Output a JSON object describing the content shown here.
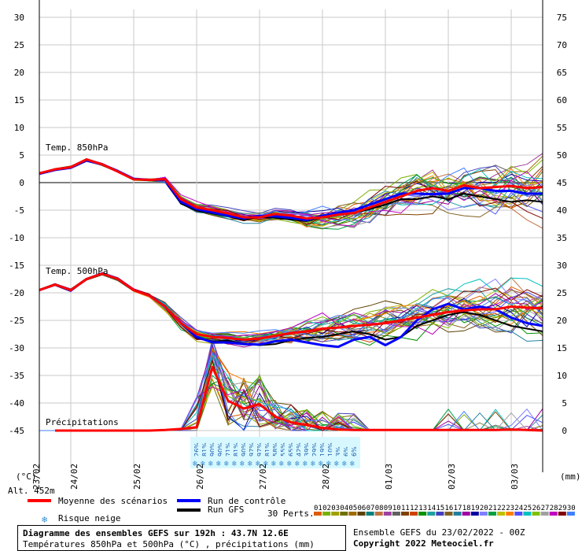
{
  "chart_data": {
    "type": "line",
    "title": "Diagramme des ensembles GEFS sur 192h : 43.7N 12.6E",
    "subtitle": "Températures 850hPa et 500hPa (°C) , précipitations (mm)",
    "left_axis": {
      "label": "(°C)",
      "min": -45,
      "max": 30,
      "ticks": [
        30,
        25,
        20,
        15,
        10,
        5,
        0,
        -5,
        -10,
        -15,
        -20,
        -25,
        -30,
        -35,
        -40,
        -45
      ]
    },
    "right_axis": {
      "label": "(mm)",
      "min": 0,
      "max": 75,
      "ticks": [
        75,
        70,
        65,
        60,
        55,
        50,
        45,
        40,
        35,
        30,
        25,
        20,
        15,
        10,
        5,
        0
      ]
    },
    "x_axis": {
      "start_hour": 0,
      "end_hour": 192,
      "date_ticks": [
        {
          "label": "24/02",
          "hour": 12
        },
        {
          "label": "25/02",
          "hour": 36
        },
        {
          "label": "26/02",
          "hour": 60
        },
        {
          "label": "27/02",
          "hour": 84
        },
        {
          "label": "28/02",
          "hour": 108
        },
        {
          "label": "01/03",
          "hour": 132
        },
        {
          "label": "02/03",
          "hour": 156
        },
        {
          "label": "03/03",
          "hour": 180
        }
      ],
      "first_label": "23/02"
    },
    "panel_labels": {
      "t850": "Temp. 850hPa",
      "t500": "Temp. 500hPa",
      "precip": "Précipitations"
    },
    "series_hours": [
      0,
      6,
      12,
      18,
      24,
      30,
      36,
      42,
      48,
      54,
      60,
      66,
      72,
      78,
      84,
      90,
      96,
      102,
      108,
      114,
      120,
      126,
      132,
      138,
      144,
      150,
      156,
      162,
      168,
      174,
      180,
      186,
      192
    ],
    "series": [
      {
        "name": "Moyenne des scénarios T850",
        "color": "#ff0000",
        "values": [
          1.7,
          2.4,
          2.8,
          4.2,
          3.3,
          2.0,
          0.6,
          0.5,
          0.6,
          -3.0,
          -4.5,
          -5.0,
          -5.6,
          -6.3,
          -6.3,
          -5.7,
          -6.0,
          -6.5,
          -6.3,
          -5.8,
          -5.5,
          -4.5,
          -3.5,
          -2.5,
          -1.5,
          -1.0,
          -1.5,
          -0.5,
          -1.0,
          -0.8,
          -0.6,
          -1.0,
          -0.8
        ]
      },
      {
        "name": "Run de contrôle T850",
        "color": "#0000ff",
        "values": [
          1.6,
          2.3,
          2.7,
          4.0,
          3.3,
          2.1,
          0.7,
          0.5,
          0.5,
          -3.5,
          -4.8,
          -5.4,
          -6.0,
          -6.5,
          -6.0,
          -6.1,
          -6.4,
          -6.8,
          -6.0,
          -5.5,
          -5.0,
          -4.0,
          -3.0,
          -2.0,
          -2.0,
          -2.1,
          -2.0,
          -1.0,
          -1.0,
          -1.5,
          -1.5,
          -2.0,
          -2.0
        ]
      },
      {
        "name": "Run GFS T850",
        "color": "#000000",
        "values": [
          1.6,
          2.3,
          2.8,
          4.1,
          3.2,
          2.0,
          0.6,
          0.4,
          0.4,
          -3.8,
          -5.1,
          -5.6,
          -6.1,
          -6.8,
          -6.2,
          -6.4,
          -6.7,
          -7.0,
          -6.2,
          -5.8,
          -5.5,
          -4.8,
          -4.0,
          -3.0,
          -3.0,
          -2.5,
          -3.0,
          -2.0,
          -2.5,
          -3.0,
          -3.5,
          -3.2,
          -3.5
        ]
      },
      {
        "name": "Moyenne des scénarios T500",
        "color": "#ff0000",
        "values": [
          -19.5,
          -18.5,
          -19.5,
          -17.5,
          -16.5,
          -17.5,
          -19.5,
          -20.5,
          -22.5,
          -25.5,
          -27.5,
          -28.0,
          -28.2,
          -28.5,
          -28.3,
          -27.8,
          -27.3,
          -27.0,
          -26.5,
          -26.3,
          -26.0,
          -25.8,
          -25.5,
          -25.0,
          -24.5,
          -24.0,
          -23.5,
          -23.2,
          -23.0,
          -23.0,
          -22.5,
          -22.7,
          -22.8
        ]
      },
      {
        "name": "Run de contrôle T500",
        "color": "#0000ff",
        "values": [
          -19.5,
          -18.5,
          -19.5,
          -17.5,
          -16.5,
          -17.5,
          -19.5,
          -20.5,
          -22.5,
          -25.5,
          -28.0,
          -29.0,
          -29.0,
          -29.3,
          -29.4,
          -28.8,
          -28.5,
          -29.0,
          -29.5,
          -29.8,
          -28.5,
          -28.0,
          -29.5,
          -28.0,
          -25.0,
          -23.0,
          -22.0,
          -23.0,
          -22.5,
          -23.0,
          -24.5,
          -25.5,
          -26.0
        ]
      },
      {
        "name": "Run GFS T500",
        "color": "#000000",
        "values": [
          -19.5,
          -18.5,
          -19.5,
          -17.5,
          -16.5,
          -17.5,
          -19.5,
          -20.5,
          -22.5,
          -25.5,
          -28.2,
          -28.8,
          -28.7,
          -29.2,
          -29.5,
          -29.3,
          -28.6,
          -28.2,
          -28.0,
          -27.5,
          -27.0,
          -27.5,
          -28.5,
          -28.0,
          -26.0,
          -25.0,
          -24.0,
          -23.5,
          -24.0,
          -25.0,
          -26.0,
          -26.5,
          -27.0
        ]
      },
      {
        "name": "Moyenne des scénarios Précipitations (mm)",
        "color": "#ff0000",
        "values": [
          0,
          0,
          0,
          0,
          0,
          0,
          0,
          0,
          0.1,
          0.3,
          0.6,
          11.5,
          5.4,
          4.0,
          4.8,
          2.5,
          1.5,
          1.0,
          0.5,
          0.2,
          0.1,
          0.1,
          0.1,
          0.1,
          0.1,
          0.1,
          0.1,
          0.1,
          0.1,
          0.1,
          0.2,
          0.1,
          0.0
        ]
      }
    ],
    "members_count": 30,
    "member_labels": [
      "01",
      "02",
      "03",
      "04",
      "05",
      "06",
      "07",
      "08",
      "09",
      "10",
      "11",
      "12",
      "13",
      "14",
      "15",
      "16",
      "17",
      "18",
      "19",
      "20",
      "21",
      "22",
      "23",
      "24",
      "25",
      "26",
      "27",
      "28",
      "29",
      "30"
    ],
    "member_colors": [
      "#e05a00",
      "#7ab000",
      "#a0a000",
      "#707000",
      "#a06a00",
      "#604000",
      "#008080",
      "#c07040",
      "#a040a0",
      "#606060",
      "#804000",
      "#d04000",
      "#009000",
      "#20a0a0",
      "#4040c0",
      "#806020",
      "#2080a0",
      "#a000a0",
      "#0000a0",
      "#8080ff",
      "#00a040",
      "#c0c000",
      "#ff8000",
      "#5050ff",
      "#00c0c0",
      "#80c000",
      "#a0a0a0",
      "#c000c0",
      "#800000",
      "#4080ff"
    ],
    "snow_risk": [
      {
        "hour": 60,
        "pct": "26%"
      },
      {
        "hour": 63,
        "pct": "81%"
      },
      {
        "hour": 66,
        "pct": "90%"
      },
      {
        "hour": 69,
        "pct": "90%"
      },
      {
        "hour": 72,
        "pct": "71%"
      },
      {
        "hour": 75,
        "pct": "81%"
      },
      {
        "hour": 78,
        "pct": "90%"
      },
      {
        "hour": 81,
        "pct": "97%"
      },
      {
        "hour": 84,
        "pct": "97%"
      },
      {
        "hour": 87,
        "pct": "81%"
      },
      {
        "hour": 90,
        "pct": "58%"
      },
      {
        "hour": 93,
        "pct": "55%"
      },
      {
        "hour": 96,
        "pct": "65%"
      },
      {
        "hour": 99,
        "pct": "42%"
      },
      {
        "hour": 102,
        "pct": "39%"
      },
      {
        "hour": 105,
        "pct": "29%"
      },
      {
        "hour": 108,
        "pct": "19%"
      },
      {
        "hour": 111,
        "pct": "10%"
      },
      {
        "hour": 114,
        "pct": "3%"
      },
      {
        "hour": 117,
        "pct": "6%"
      },
      {
        "hour": 120,
        "pct": "6%"
      }
    ]
  },
  "altitude": "Alt. 452m",
  "legend": {
    "mean": "Moyenne des scénarios",
    "control": "Run de contrôle",
    "gfs": "Run GFS",
    "snow": "Risque neige",
    "perts": "30 Perts."
  },
  "footer": {
    "title": "Diagramme des ensembles GEFS sur 192h : 43.7N 12.6E",
    "subtitle": "Températures 850hPa et 500hPa (°C) , précipitations (mm)",
    "ensemble": "Ensemble GEFS du 23/02/2022 - 00Z",
    "copyright": "Copyright 2022 Meteociel.fr"
  },
  "colors": {
    "mean": "#ff0000",
    "control": "#0000ff",
    "gfs": "#000000",
    "grid": "#c8c8c8",
    "zero_line": "#808080",
    "snow_bg": "#d8f8ff"
  }
}
